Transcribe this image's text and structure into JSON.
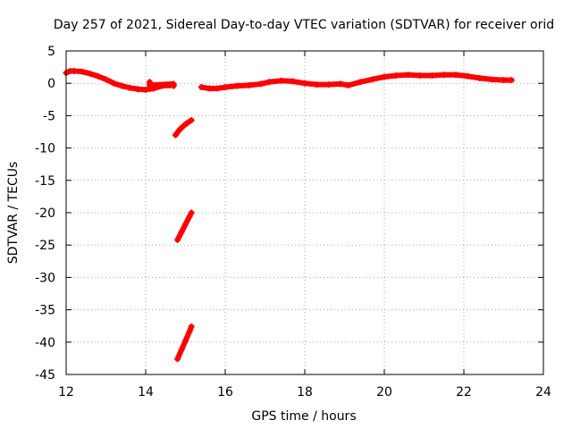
{
  "chart_data": {
    "type": "scatter",
    "title": "Day 257 of 2021, Sidereal Day-to-day VTEC variation (SDTVAR) for receiver orid",
    "xlabel": "GPS time / hours",
    "ylabel": "SDTVAR / TECUs",
    "xlim": [
      12,
      24
    ],
    "ylim": [
      -45,
      5
    ],
    "xticks": [
      12,
      14,
      16,
      18,
      20,
      22,
      24
    ],
    "yticks": [
      5,
      0,
      -5,
      -10,
      -15,
      -20,
      -25,
      -30,
      -35,
      -40,
      -45
    ],
    "grid": true,
    "legend": "none",
    "series": [
      {
        "name": "main-trace",
        "color": "#ff0000",
        "points": [
          [
            12.0,
            1.6
          ],
          [
            12.1,
            1.9
          ],
          [
            12.2,
            1.9
          ],
          [
            12.4,
            1.8
          ],
          [
            12.6,
            1.5
          ],
          [
            12.8,
            1.1
          ],
          [
            13.0,
            0.6
          ],
          [
            13.2,
            0.0
          ],
          [
            13.4,
            -0.4
          ],
          [
            13.6,
            -0.7
          ],
          [
            13.8,
            -0.9
          ],
          [
            14.0,
            -1.0
          ],
          [
            14.2,
            -0.8
          ],
          [
            14.4,
            -0.4
          ],
          [
            14.6,
            -0.3
          ],
          [
            14.7,
            -0.3
          ]
        ]
      },
      {
        "name": "main-trace-2",
        "color": "#ff0000",
        "points": [
          [
            15.4,
            -0.6
          ],
          [
            15.6,
            -0.8
          ],
          [
            15.8,
            -0.8
          ],
          [
            16.0,
            -0.6
          ],
          [
            16.3,
            -0.4
          ],
          [
            16.6,
            -0.3
          ],
          [
            16.9,
            -0.1
          ],
          [
            17.1,
            0.2
          ],
          [
            17.4,
            0.4
          ],
          [
            17.7,
            0.3
          ],
          [
            18.0,
            0.0
          ],
          [
            18.3,
            -0.2
          ],
          [
            18.6,
            -0.2
          ],
          [
            18.9,
            -0.1
          ],
          [
            19.1,
            -0.3
          ],
          [
            19.4,
            0.2
          ],
          [
            19.7,
            0.6
          ],
          [
            20.0,
            1.0
          ],
          [
            20.3,
            1.2
          ],
          [
            20.6,
            1.3
          ],
          [
            20.9,
            1.2
          ],
          [
            21.2,
            1.2
          ],
          [
            21.5,
            1.3
          ],
          [
            21.8,
            1.3
          ],
          [
            22.1,
            1.1
          ],
          [
            22.4,
            0.8
          ],
          [
            22.7,
            0.6
          ],
          [
            23.0,
            0.5
          ],
          [
            23.2,
            0.5
          ]
        ]
      },
      {
        "name": "segment-a",
        "color": "#ff0000",
        "points": [
          [
            14.75,
            -8.0
          ],
          [
            14.85,
            -7.2
          ],
          [
            14.95,
            -6.6
          ],
          [
            15.05,
            -6.1
          ],
          [
            15.15,
            -5.7
          ]
        ]
      },
      {
        "name": "segment-b",
        "color": "#ff0000",
        "points": [
          [
            14.8,
            -24.2
          ],
          [
            14.9,
            -23.0
          ],
          [
            15.0,
            -21.8
          ],
          [
            15.1,
            -20.6
          ],
          [
            15.15,
            -20.0
          ]
        ]
      },
      {
        "name": "segment-c",
        "color": "#ff0000",
        "points": [
          [
            14.8,
            -42.6
          ],
          [
            14.9,
            -41.2
          ],
          [
            15.0,
            -39.8
          ],
          [
            15.1,
            -38.4
          ],
          [
            15.15,
            -37.6
          ]
        ]
      },
      {
        "name": "outliers",
        "color": "#ff0000",
        "points": [
          [
            14.1,
            0.2
          ],
          [
            14.1,
            -0.3
          ],
          [
            14.7,
            -0.1
          ],
          [
            14.7,
            -0.4
          ]
        ]
      }
    ]
  }
}
